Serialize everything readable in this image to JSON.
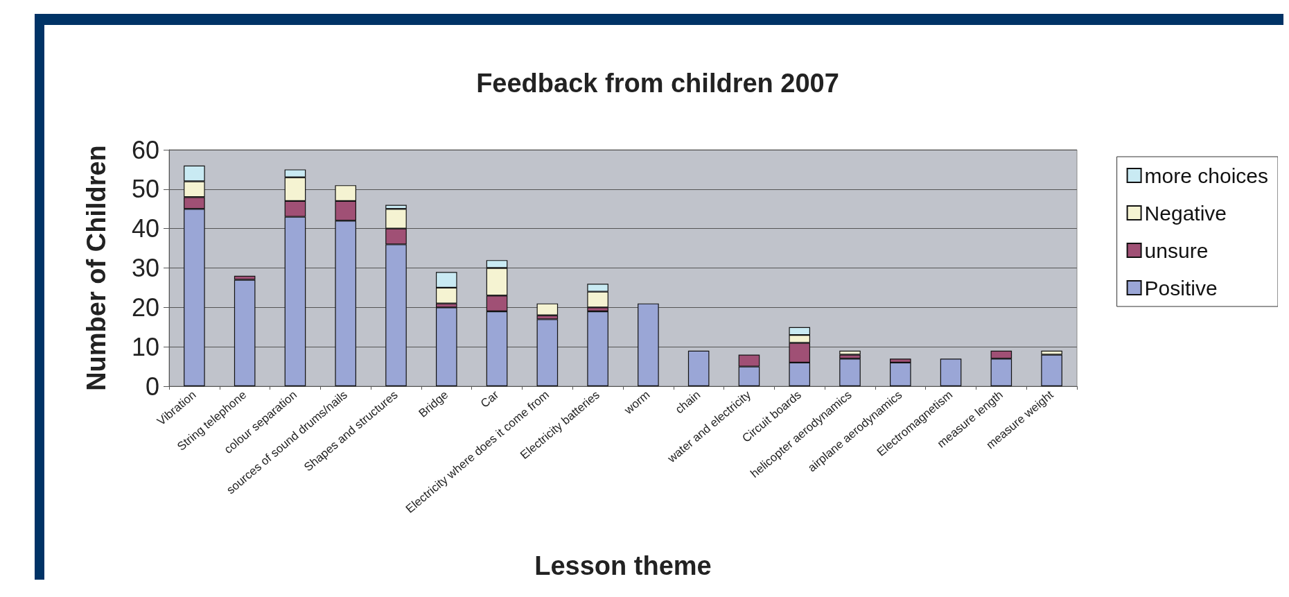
{
  "chart_data": {
    "type": "bar",
    "title": "Feedback from children 2007",
    "xlabel": "Lesson theme",
    "ylabel": "Number of Children",
    "categories": [
      "Vibration",
      "String telephone",
      "colour separation",
      "sources of sound drums/nails",
      "Shapes and structures",
      "Bridge",
      "Car",
      "Electricity where does it come from",
      "Electricity batteries",
      "worm",
      "chain",
      "water and electricity",
      "Circuit boards",
      "helicopter aerodynamics",
      "airplane aerodynamics",
      "Electromagnetism",
      "measure length",
      "measure weight"
    ],
    "stacked": true,
    "series": [
      {
        "name": "Positive",
        "color": "#9aa6d6",
        "values": [
          45,
          27,
          43,
          42,
          36,
          20,
          19,
          17,
          19,
          21,
          9,
          5,
          6,
          7,
          6,
          7,
          7,
          8
        ]
      },
      {
        "name": "unsure",
        "color": "#a05075",
        "values": [
          3,
          1,
          4,
          5,
          4,
          1,
          4,
          1,
          1,
          0,
          0,
          3,
          5,
          1,
          1,
          0,
          2,
          0
        ]
      },
      {
        "name": "Negative",
        "color": "#f5f3d2",
        "values": [
          4,
          0,
          6,
          4,
          5,
          4,
          7,
          3,
          4,
          0,
          0,
          0,
          2,
          1,
          0,
          0,
          0,
          1
        ]
      },
      {
        "name": "more choices",
        "color": "#c9eaf3",
        "values": [
          4,
          0,
          2,
          0,
          1,
          4,
          2,
          0,
          2,
          0,
          0,
          0,
          2,
          0,
          0,
          0,
          0,
          0
        ]
      }
    ],
    "ylim": [
      0,
      60
    ],
    "yticks": [
      0,
      10,
      20,
      30,
      40,
      50,
      60
    ],
    "grid": "y",
    "legend": "right"
  }
}
